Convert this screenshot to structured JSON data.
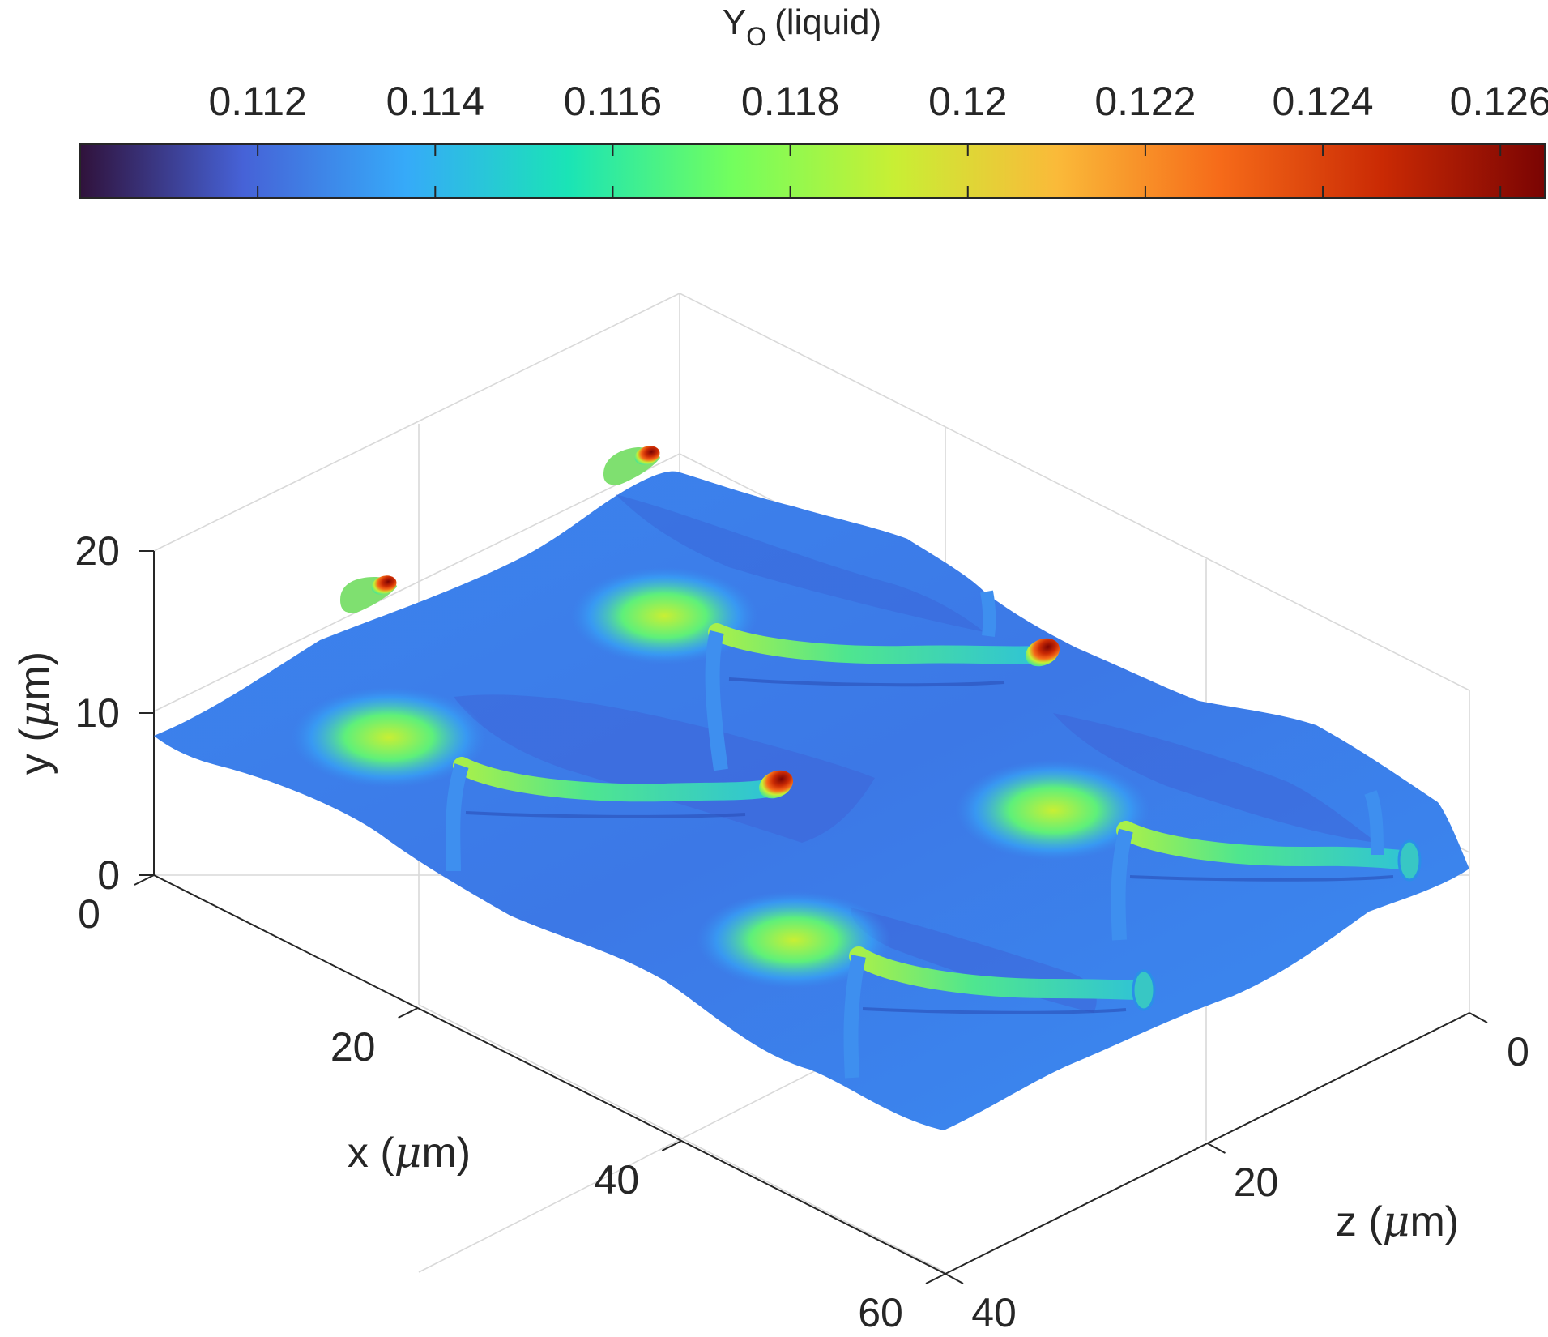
{
  "chart_data": {
    "type": "3d-surface",
    "title": "",
    "colorbar": {
      "title_main": "Y",
      "title_sub": "O",
      "title_rest": "(liquid)",
      "min": 0.11,
      "max": 0.1265,
      "ticks": [
        0.112,
        0.114,
        0.116,
        0.118,
        0.12,
        0.122,
        0.124,
        0.126
      ],
      "tick_labels": [
        "0.112",
        "0.114",
        "0.116",
        "0.118",
        "0.12",
        "0.122",
        "0.124",
        "0.126"
      ],
      "colormap": "turbo",
      "colors": [
        "#30123b",
        "#4662d7",
        "#36aaf9",
        "#1ae4b6",
        "#72fe5e",
        "#c8ef34",
        "#faba39",
        "#f66b19",
        "#ca2a04",
        "#7a0403"
      ]
    },
    "axes": {
      "x": {
        "label_prefix": "x (",
        "label_mu": "μ",
        "label_suffix": "m)",
        "ticks": [
          0,
          20,
          40,
          60
        ],
        "tick_labels": [
          "0",
          "20",
          "40",
          "60"
        ],
        "lim": [
          0,
          60
        ]
      },
      "y": {
        "label_prefix": "y (",
        "label_mu": "μ",
        "label_suffix": "m)",
        "ticks": [
          0,
          10,
          20
        ],
        "tick_labels": [
          "0",
          "10",
          "20"
        ],
        "lim": [
          0,
          20
        ]
      },
      "z": {
        "label_prefix": "z (",
        "label_mu": "μ",
        "label_suffix": "m)",
        "ticks": [
          0,
          20,
          40
        ],
        "tick_labels": [
          "0",
          "20",
          "40"
        ],
        "lim": [
          0,
          40
        ]
      }
    },
    "surface": {
      "description_value_min": 0.1115,
      "features": [
        {
          "name": "interface-ridge-1",
          "peak": 0.1265
        },
        {
          "name": "interface-ridge-2",
          "peak": 0.1265
        },
        {
          "name": "interface-ridge-3",
          "peak": 0.119
        },
        {
          "name": "interface-ridge-4",
          "peak": 0.119
        }
      ]
    }
  }
}
